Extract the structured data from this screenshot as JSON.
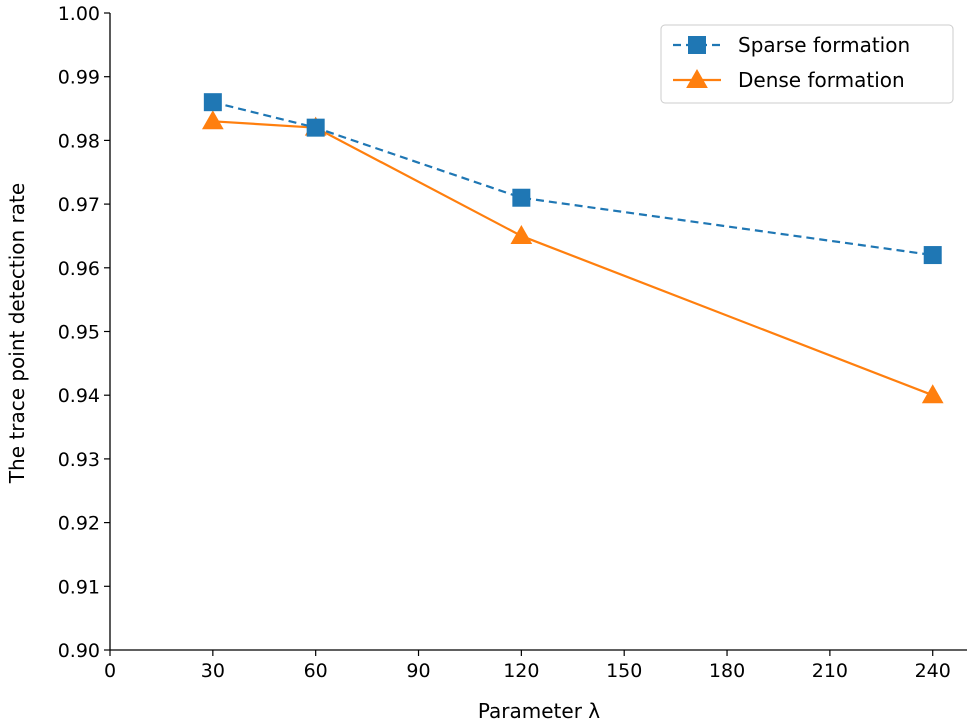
{
  "chart_data": {
    "type": "line",
    "title": "",
    "xlabel": "Parameter λ",
    "ylabel": "The trace point detection rate",
    "xlim": [
      0,
      250
    ],
    "ylim": [
      0.9,
      1.0
    ],
    "xticks": [
      "0",
      "30",
      "60",
      "90",
      "120",
      "150",
      "180",
      "210",
      "240"
    ],
    "xtick_values": [
      0,
      30,
      60,
      90,
      120,
      150,
      180,
      210,
      240
    ],
    "yticks": [
      "0.90",
      "0.91",
      "0.92",
      "0.93",
      "0.94",
      "0.95",
      "0.96",
      "0.97",
      "0.98",
      "0.99",
      "1.00"
    ],
    "ytick_values": [
      0.9,
      0.91,
      0.92,
      0.93,
      0.94,
      0.95,
      0.96,
      0.97,
      0.98,
      0.99,
      1.0
    ],
    "x": [
      30,
      60,
      120,
      240
    ],
    "series": [
      {
        "name": "Sparse formation",
        "values": [
          0.986,
          0.982,
          0.971,
          0.962
        ],
        "color": "#1f77b4",
        "marker": "square",
        "linestyle": "dashed"
      },
      {
        "name": "Dense formation",
        "values": [
          0.983,
          0.982,
          0.965,
          0.94
        ],
        "color": "#ff7f0e",
        "marker": "triangle",
        "linestyle": "solid"
      }
    ],
    "legend_position": "top-right",
    "grid": false
  }
}
